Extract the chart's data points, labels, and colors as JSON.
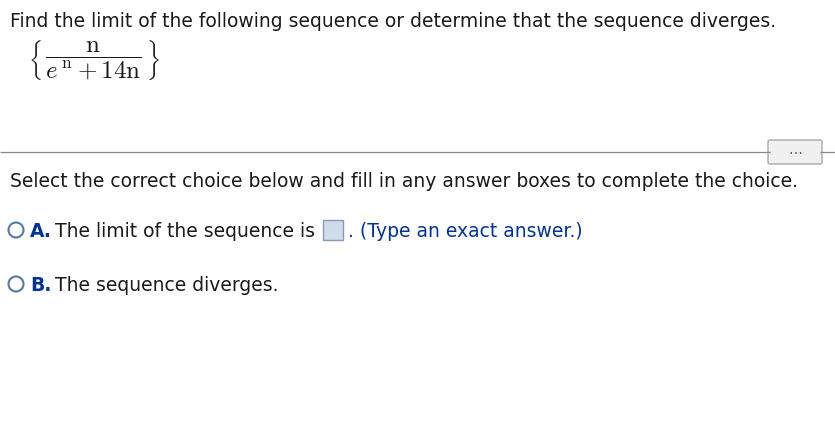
{
  "title_text": "Find the limit of the following sequence or determine that the sequence diverges.",
  "select_text": "Select the correct choice below and fill in any answer boxes to complete the choice.",
  "option_a_label": "A.",
  "option_a_text": "The limit of the sequence is",
  "option_a_suffix": ". (Type an exact answer.)",
  "option_b_label": "B.",
  "option_b_text": "The sequence diverges.",
  "bg_color": "#ffffff",
  "text_color": "#1a1a1a",
  "option_label_color": "#003399",
  "circle_edge_color": "#5577aa",
  "divider_color": "#888888",
  "dots_color": "#555555",
  "dots_bg": "#f0f0f0",
  "dots_border": "#aaaaaa",
  "box_fill": "#d0dce8",
  "box_border": "#8899bb",
  "title_fontsize": 13.5,
  "body_fontsize": 13.5,
  "math_fontsize": 16,
  "fig_width": 8.35,
  "fig_height": 4.34,
  "dpi": 100
}
